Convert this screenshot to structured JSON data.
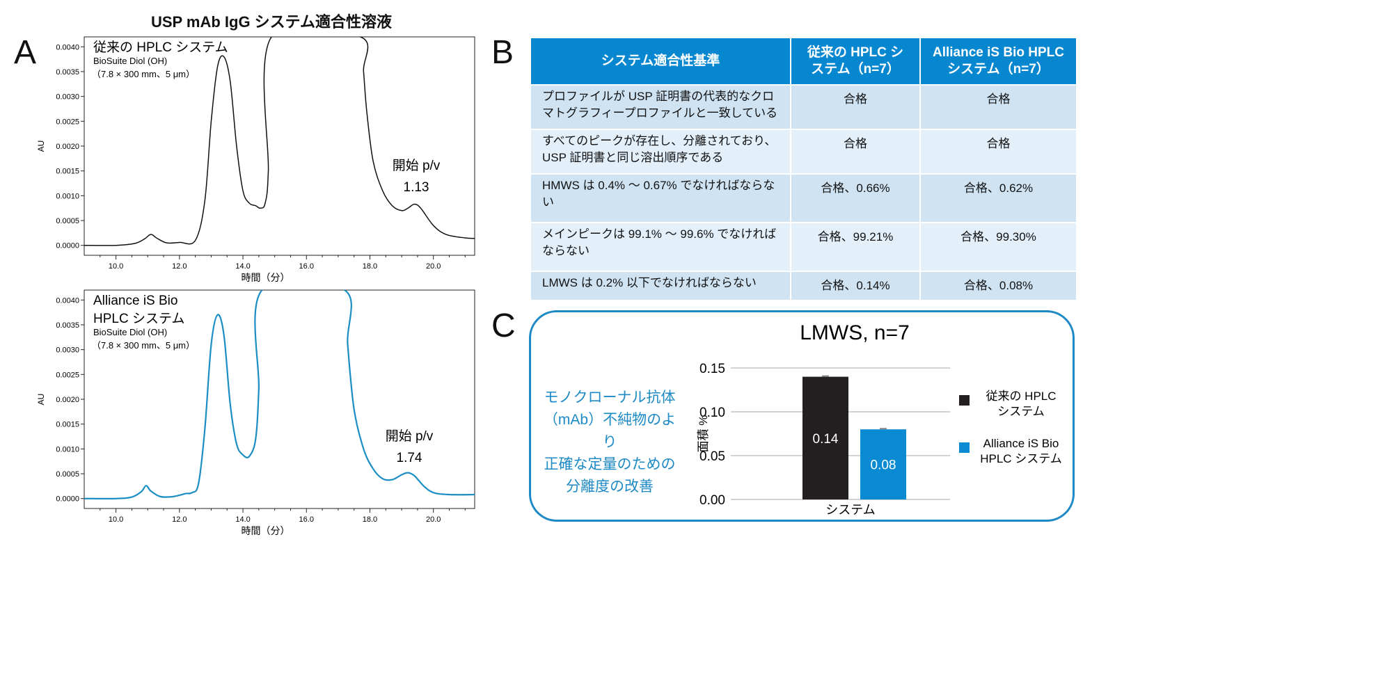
{
  "title": "USP mAb IgG システム適合性溶液",
  "panel_letters": {
    "a": "A",
    "b": "B",
    "c": "C"
  },
  "panel_a": {
    "x_axis_label": "時間（分）",
    "y_axis_label": "AU",
    "colors": {
      "top_trace": "#111111",
      "bottom_trace": "#1b8ec4"
    }
  },
  "table": {
    "headers": [
      "システム適合性基準",
      "従来の HPLC システム（n=7）",
      "Alliance iS Bio HPLC システム（n=7）"
    ],
    "rows": [
      {
        "criterion": "プロファイルが USP 証明書の代表的なクロマトグラフィープロファイルと一致している",
        "conventional": "合格",
        "alliance": "合格"
      },
      {
        "criterion": "すべてのピークが存在し、分離されており、USP 証明書と同じ溶出順序である",
        "conventional": "合格",
        "alliance": "合格"
      },
      {
        "criterion": "HMWS は 0.4% 〜 0.67% でなければならない",
        "conventional": "合格、0.66%",
        "alliance": "合格、0.62%"
      },
      {
        "criterion": "メインピークは 99.1% 〜 99.6% でなければならない",
        "conventional": "合格、99.21%",
        "alliance": "合格、99.30%"
      },
      {
        "criterion": "LMWS は 0.2% 以下でなければならない",
        "conventional": "合格、0.14%",
        "alliance": "合格、0.08%"
      }
    ],
    "colors": {
      "header": "#0687d0",
      "row_dark": "#cfe3f3",
      "row_light": "#e3eff9"
    }
  },
  "panel_c": {
    "callout": [
      "モノクローナル抗体",
      "（mAb）不純物のより",
      "正確な定量のための",
      "分離度の改善"
    ],
    "colors": {
      "border": "#1d8ac6",
      "callout_text": "#1d8ac6"
    }
  },
  "chart_data": [
    {
      "type": "line",
      "panel": "A-top",
      "inset_title": "従来の HPLC システム",
      "inset_subtitle": [
        "BioSuite Diol (OH)",
        "（7.8 × 300 mm、5 μm）"
      ],
      "annotation": [
        "開始 p/v",
        "1.13"
      ],
      "xlabel": "時間（分）",
      "ylabel": "AU",
      "xlim": [
        9.0,
        21.3
      ],
      "ylim": [
        -0.0002,
        0.0042
      ],
      "xticks": [
        "10.0",
        "12.0",
        "14.0",
        "16.0",
        "18.0",
        "20.0"
      ],
      "yticks": [
        "0.0000",
        "0.0005",
        "0.0010",
        "0.0015",
        "0.0020",
        "0.0025",
        "0.0030",
        "0.0035",
        "0.0040"
      ],
      "color": "#111111",
      "x": [
        9.0,
        10.0,
        10.6,
        10.9,
        11.1,
        11.3,
        11.6,
        12.0,
        12.5,
        12.8,
        13.0,
        13.2,
        13.4,
        13.6,
        13.8,
        14.0,
        14.2,
        14.4,
        14.55,
        14.7,
        14.8,
        14.9,
        17.7,
        17.8,
        17.9,
        18.1,
        18.4,
        18.7,
        19.0,
        19.2,
        19.4,
        19.6,
        20.0,
        20.4,
        21.0,
        21.3
      ],
      "y": [
        0.0,
        0.0,
        4e-05,
        0.00013,
        0.00022,
        0.00014,
        5e-05,
        6e-05,
        0.0001,
        0.0009,
        0.0025,
        0.0036,
        0.0038,
        0.0033,
        0.002,
        0.0011,
        0.00085,
        0.0008,
        0.00075,
        0.00085,
        0.0015,
        0.0042,
        0.0042,
        0.0035,
        0.0027,
        0.0017,
        0.0011,
        0.0008,
        0.0007,
        0.00075,
        0.00083,
        0.00075,
        0.0004,
        0.00022,
        0.00015,
        0.00014
      ]
    },
    {
      "type": "line",
      "panel": "A-bottom",
      "inset_title": [
        "Alliance iS Bio",
        "HPLC システム"
      ],
      "inset_subtitle": [
        "BioSuite Diol (OH)",
        "（7.8 × 300 mm、5 μm）"
      ],
      "annotation": [
        "開始 p/v",
        "1.74"
      ],
      "xlabel": "時間（分）",
      "ylabel": "AU",
      "xlim": [
        9.0,
        21.3
      ],
      "ylim": [
        -0.0002,
        0.0042
      ],
      "xticks": [
        "10.0",
        "12.0",
        "14.0",
        "16.0",
        "18.0",
        "20.0"
      ],
      "yticks": [
        "0.0000",
        "0.0005",
        "0.0010",
        "0.0015",
        "0.0020",
        "0.0025",
        "0.0030",
        "0.0035",
        "0.0040"
      ],
      "color": "#1b8ec4",
      "x": [
        9.0,
        10.0,
        10.5,
        10.8,
        10.95,
        11.1,
        11.4,
        11.8,
        12.2,
        12.4,
        12.6,
        12.8,
        13.0,
        13.2,
        13.4,
        13.6,
        13.8,
        14.0,
        14.2,
        14.4,
        14.5,
        14.6,
        17.2,
        17.3,
        17.5,
        17.8,
        18.1,
        18.4,
        18.7,
        19.0,
        19.2,
        19.4,
        19.7,
        20.0,
        20.5,
        21.3
      ],
      "y": [
        0.0,
        0.0,
        3e-05,
        0.00014,
        0.00026,
        0.00015,
        4e-05,
        4e-05,
        0.0001,
        0.00012,
        0.0003,
        0.0014,
        0.0031,
        0.0037,
        0.0033,
        0.0019,
        0.0011,
        0.00088,
        0.00085,
        0.0012,
        0.0022,
        0.0042,
        0.0042,
        0.0031,
        0.0018,
        0.001,
        0.0006,
        0.0004,
        0.00038,
        0.00048,
        0.00052,
        0.00046,
        0.00025,
        0.00012,
        8e-05,
        8e-05
      ]
    },
    {
      "type": "bar",
      "panel": "C",
      "title": "LMWS, n=7",
      "categories": [
        "システム"
      ],
      "xlabel": "システム",
      "ylabel": "面積 %",
      "ylim": [
        0,
        0.15
      ],
      "yticks": [
        "0.00",
        "0.05",
        "0.10",
        "0.15"
      ],
      "series": [
        {
          "name": "従来の HPLC システム",
          "values": [
            0.14
          ],
          "label": "0.14",
          "color": "#231f20"
        },
        {
          "name": "Alliance iS Bio HPLC システム",
          "values": [
            0.08
          ],
          "label": "0.08",
          "color": "#0a8ad2"
        }
      ],
      "legend": "right"
    }
  ]
}
